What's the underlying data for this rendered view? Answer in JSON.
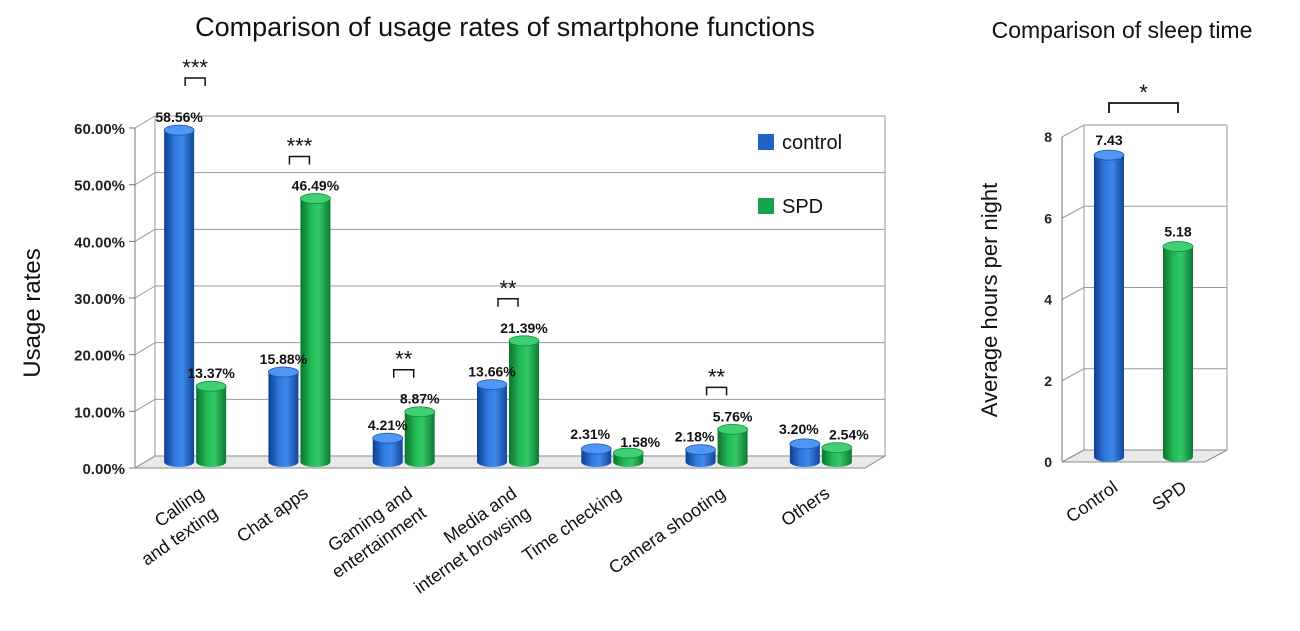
{
  "chart_data": [
    {
      "type": "bar",
      "title": "Comparison of  usage rates of smartphone functions",
      "xlabel": "",
      "ylabel": "Usage rates",
      "ylim": [
        0,
        60
      ],
      "yticks": [
        "0.00%",
        "10.00%",
        "20.00%",
        "30.00%",
        "40.00%",
        "50.00%",
        "60.00%"
      ],
      "grid": true,
      "legend_position": "top-right",
      "categories": [
        "Calling and texting",
        "Chat apps",
        "Gaming and entertainment",
        "Media and internet browsing",
        "Time checking",
        "Camera shooting",
        "Others"
      ],
      "category_lines": [
        [
          "Calling",
          "and texting"
        ],
        [
          "Chat apps"
        ],
        [
          "Gaming and",
          "entertainment"
        ],
        [
          "Media and",
          "internet browsing"
        ],
        [
          "Time checking"
        ],
        [
          "Camera shooting"
        ],
        [
          "Others"
        ]
      ],
      "series": [
        {
          "name": "control",
          "color": "#1f63c4",
          "values": [
            58.56,
            15.88,
            4.21,
            13.66,
            2.31,
            2.18,
            3.2
          ],
          "labels": [
            "58.56%",
            "15.88%",
            "4.21%",
            "13.66%",
            "2.31%",
            "2.18%",
            "3.20%"
          ]
        },
        {
          "name": "SPD",
          "color": "#17a34a",
          "values": [
            13.37,
            46.49,
            8.87,
            21.39,
            1.58,
            5.76,
            2.54
          ],
          "labels": [
            "13.37%",
            "46.49%",
            "8.87%",
            "21.39%",
            "1.58%",
            "5.76%",
            "2.54%"
          ]
        }
      ],
      "significance": [
        {
          "category_index": 0,
          "label": "***"
        },
        {
          "category_index": 1,
          "label": "***"
        },
        {
          "category_index": 2,
          "label": "**"
        },
        {
          "category_index": 3,
          "label": "**"
        },
        {
          "category_index": 5,
          "label": "**"
        }
      ]
    },
    {
      "type": "bar",
      "title": "Comparison of sleep time",
      "xlabel": "",
      "ylabel": "Average hours per night",
      "ylim": [
        0,
        8
      ],
      "yticks": [
        "0",
        "2",
        "4",
        "6",
        "8"
      ],
      "grid": true,
      "categories": [
        "Control",
        "SPD"
      ],
      "values": [
        7.43,
        5.18
      ],
      "labels": [
        "7.43",
        "5.18"
      ],
      "colors": [
        "#1f63c4",
        "#17a34a"
      ],
      "significance": [
        {
          "between": [
            0,
            1
          ],
          "label": "*"
        }
      ]
    }
  ]
}
